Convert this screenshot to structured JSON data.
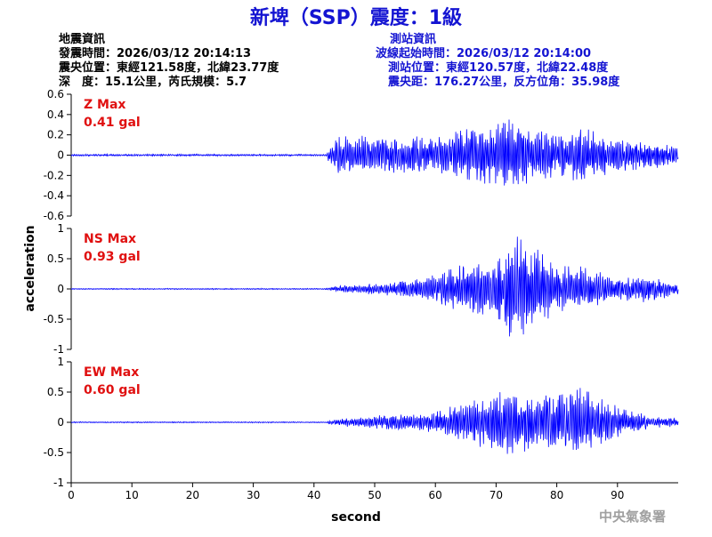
{
  "title": "新埤（SSP）震度：1級",
  "quake_info": {
    "heading": "地震資訊",
    "time": "發震時間：2026/03/12 20:14:13",
    "location": "震央位置：東經121.58度，北緯23.77度",
    "depth": "深　度：15.1公里，芮氏規模：5.7"
  },
  "station_info": {
    "heading": "測站資訊",
    "wave_start": "波線起始時間：2026/03/12 20:14:00",
    "location": "測站位置：東經120.57度，北緯22.48度",
    "distance": "震央距：176.27公里，反方位角：35.98度"
  },
  "agency": "中央氣象署",
  "colors": {
    "title": "#1414d2",
    "trace": "#0000ff",
    "max_label": "#e01010"
  },
  "chart_data": {
    "type": "line",
    "xlabel": "second",
    "ylabel": "acceleration",
    "xlim": [
      0,
      100
    ],
    "x_ticks": [
      "0",
      "10",
      "20",
      "30",
      "40",
      "50",
      "60",
      "70",
      "80",
      "90"
    ],
    "panels": [
      {
        "name": "Z",
        "max_title": "Z Max",
        "max_value": "0.41 gal",
        "ylim": [
          -0.6,
          0.6
        ],
        "y_ticks": [
          "0.6",
          "0.4",
          "0.2",
          "0",
          "-0.2",
          "-0.4",
          "-0.6"
        ],
        "envelope": [
          [
            0,
            0.01
          ],
          [
            42,
            0.01
          ],
          [
            43,
            0.15
          ],
          [
            44,
            0.2
          ],
          [
            48,
            0.22
          ],
          [
            52,
            0.18
          ],
          [
            60,
            0.2
          ],
          [
            66,
            0.28
          ],
          [
            70,
            0.32
          ],
          [
            72,
            0.41
          ],
          [
            76,
            0.3
          ],
          [
            80,
            0.22
          ],
          [
            85,
            0.3
          ],
          [
            88,
            0.2
          ],
          [
            95,
            0.14
          ],
          [
            100,
            0.1
          ]
        ]
      },
      {
        "name": "NS",
        "max_title": "NS Max",
        "max_value": "0.93 gal",
        "ylim": [
          -1,
          1
        ],
        "y_ticks": [
          "1",
          "0.5",
          "0",
          "-0.5",
          "-1"
        ],
        "envelope": [
          [
            0,
            0.01
          ],
          [
            42,
            0.01
          ],
          [
            43,
            0.05
          ],
          [
            48,
            0.08
          ],
          [
            55,
            0.15
          ],
          [
            60,
            0.25
          ],
          [
            65,
            0.45
          ],
          [
            70,
            0.6
          ],
          [
            73,
            0.93
          ],
          [
            76,
            0.75
          ],
          [
            80,
            0.45
          ],
          [
            85,
            0.35
          ],
          [
            90,
            0.2
          ],
          [
            95,
            0.22
          ],
          [
            100,
            0.1
          ]
        ]
      },
      {
        "name": "EW",
        "max_title": "EW Max",
        "max_value": "0.60 gal",
        "ylim": [
          -1,
          1
        ],
        "y_ticks": [
          "1",
          "0.5",
          "0",
          "-0.5",
          "-1"
        ],
        "envelope": [
          [
            0,
            0.01
          ],
          [
            42,
            0.01
          ],
          [
            43,
            0.05
          ],
          [
            50,
            0.12
          ],
          [
            60,
            0.18
          ],
          [
            65,
            0.35
          ],
          [
            70,
            0.5
          ],
          [
            72,
            0.55
          ],
          [
            78,
            0.45
          ],
          [
            85,
            0.6
          ],
          [
            88,
            0.35
          ],
          [
            92,
            0.2
          ],
          [
            96,
            0.1
          ],
          [
            100,
            0.08
          ]
        ]
      }
    ]
  }
}
